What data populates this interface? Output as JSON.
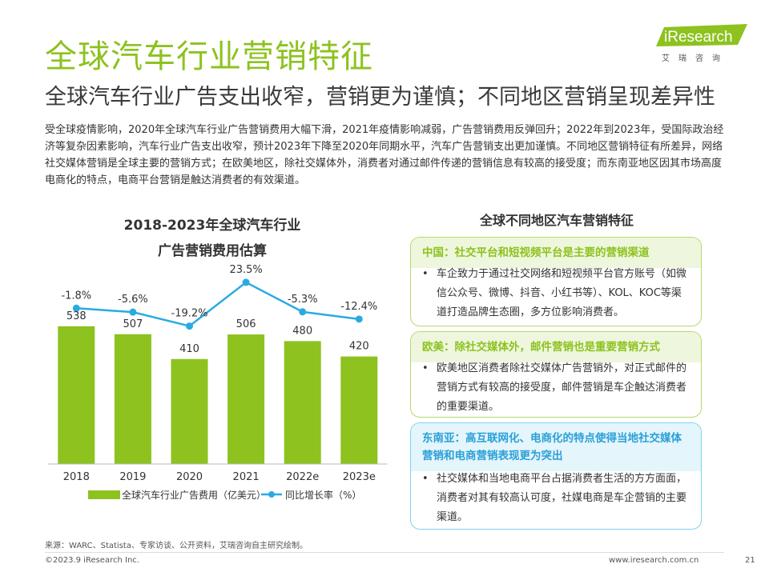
{
  "header": {
    "title": "全球汽车行业营销特征",
    "subtitle": "全球汽车行业广告支出收窄，营销更为谨慎；不同地区营销呈现差异性",
    "intro": "受全球疫情影响，2020年全球汽车行业广告营销费用大幅下滑，2021年疫情影响减弱，广告营销费用反弹回升；2022年到2023年，受国际政治经济等复杂因素影响，汽车行业广告支出收窄，预计2023年下降至2020年同期水平，汽车广告营销支出更加谨慎。不同地区营销特征有所差异，网络社交媒体营销是全球主要的营销方式；在欧美地区，除社交媒体外，消费者对通过邮件传递的营销信息有较高的接受度；而东南亚地区因其市场高度电商化的特点，电商平台营销是触达消费者的有效渠道。"
  },
  "logo": {
    "text": "iResearch",
    "cn": "艾瑞咨询"
  },
  "chart_title": {
    "line1": "2018-2023年全球汽车行业",
    "line2": "广告营销费用估算"
  },
  "chart_data": {
    "type": "bar",
    "title": "2018-2023年全球汽车行业广告营销费用估算",
    "categories": [
      "2018",
      "2019",
      "2020",
      "2021",
      "2022e",
      "2023e"
    ],
    "series": [
      {
        "name": "全球汽车行业广告费用（亿美元）",
        "type": "bar",
        "values": [
          538,
          507,
          410,
          506,
          480,
          420
        ],
        "labels": [
          "538",
          "507",
          "410",
          "506",
          "480",
          "420"
        ],
        "color": "#8dc21f"
      },
      {
        "name": "同比增长率（%）",
        "type": "line",
        "values": [
          -1.8,
          -5.6,
          -19.2,
          23.5,
          -5.3,
          -12.4
        ],
        "labels": [
          "-1.8%",
          "-5.6%",
          "-19.2%",
          "23.5%",
          "-5.3%",
          "-12.4%"
        ],
        "color": "#29abe2"
      }
    ],
    "legend_position": "bottom",
    "grid": false
  },
  "regions": {
    "heading": "全球不同地区汽车营销特征",
    "cards": [
      {
        "title": "中国：社交平台和短视频平台是主要的营销渠道",
        "bullet": "•",
        "body": "车企致力于通过社交网络和短视频平台官方账号（如微信公众号、微博、抖音、小红书等）、KOL、KOC等渠道打造品牌生态圈，多方位影响消费者。"
      },
      {
        "title": "欧美：除社交媒体外，邮件营销也是重要营销方式",
        "bullet": "•",
        "body": "欧美地区消费者除社交媒体广告营销外，对正式邮件的营销方式有较高的接受度，邮件营销是车企触达消费者的重要渠道。"
      },
      {
        "title": "东南亚：高互联网化、电商化的特点使得当地社交媒体营销和电商营销表现更为突出",
        "bullet": "•",
        "body": "社交媒体和当地电商平台占据消费者生活的方方面面，消费者对其有较高认可度，社媒电商是车企营销的主要渠道。"
      }
    ]
  },
  "footer": {
    "source": "来源：WARC、Statista、专家访谈、公开资料，艾瑞咨询自主研究绘制。",
    "copyright": "©2023.9 iResearch Inc.",
    "website": "www.iresearch.com.cn",
    "page": "21"
  },
  "colors": {
    "accent": "#8dc21f",
    "line": "#29abe2"
  }
}
